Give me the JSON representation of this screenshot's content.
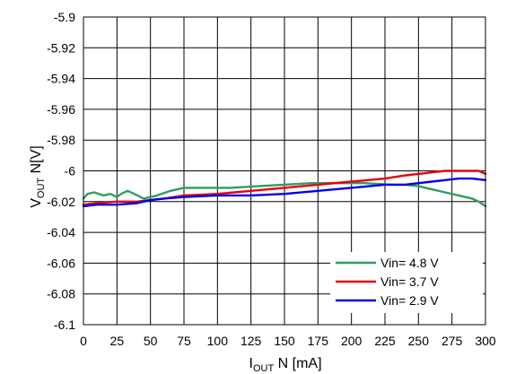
{
  "chart_data": {
    "type": "line",
    "title": "",
    "xlabel": {
      "main": "I",
      "sub": "OUT",
      "rest": " N [mA]"
    },
    "ylabel": {
      "main": "V",
      "sub": "OUT",
      "rest": " N[V]"
    },
    "xlim": [
      0,
      300
    ],
    "ylim": [
      -6.1,
      -5.9
    ],
    "xticks": [
      0,
      25,
      50,
      75,
      100,
      125,
      150,
      175,
      200,
      225,
      250,
      275,
      300
    ],
    "xtick_labels": [
      "0",
      "25",
      "50",
      "75",
      "100",
      "125",
      "150",
      "175",
      "200",
      "225",
      "250",
      "275",
      "300"
    ],
    "yticks": [
      -5.9,
      -5.92,
      -5.94,
      -5.96,
      -5.98,
      -6,
      -6.02,
      -6.04,
      -6.06,
      -6.08,
      -6.1
    ],
    "ytick_labels": [
      "-5.9",
      "-5.92",
      "-5.94",
      "-5.96",
      "-5.98",
      "-6",
      "-6.02",
      "-6.04",
      "-6.06",
      "-6.08",
      "-6.1"
    ],
    "grid": true,
    "legend_position": "bottom-right",
    "series": [
      {
        "name": "Vin= 4.8 V",
        "color": "#2e9e62",
        "x": [
          0,
          3,
          8,
          15,
          20,
          25,
          28,
          33,
          38,
          45,
          55,
          65,
          75,
          90,
          110,
          130,
          150,
          170,
          190,
          210,
          230,
          240,
          250,
          260,
          270,
          280,
          290,
          295,
          300
        ],
        "y": [
          -6.018,
          -6.015,
          -6.014,
          -6.016,
          -6.015,
          -6.017,
          -6.015,
          -6.013,
          -6.015,
          -6.018,
          -6.016,
          -6.013,
          -6.011,
          -6.011,
          -6.011,
          -6.01,
          -6.009,
          -6.008,
          -6.008,
          -6.008,
          -6.009,
          -6.009,
          -6.01,
          -6.012,
          -6.014,
          -6.016,
          -6.018,
          -6.02,
          -6.023
        ]
      },
      {
        "name": "Vin= 3.7 V",
        "color": "#e8000b",
        "x": [
          0,
          10,
          25,
          40,
          50,
          60,
          75,
          100,
          125,
          150,
          175,
          200,
          225,
          240,
          250,
          260,
          270,
          280,
          290,
          295,
          300
        ],
        "y": [
          -6.022,
          -6.021,
          -6.02,
          -6.02,
          -6.019,
          -6.018,
          -6.016,
          -6.015,
          -6.013,
          -6.011,
          -6.009,
          -6.007,
          -6.005,
          -6.003,
          -6.002,
          -6.001,
          -6.0,
          -6.0,
          -6.0,
          -6.0,
          -6.002
        ]
      },
      {
        "name": "Vin= 2.9 V",
        "color": "#0000ee",
        "x": [
          0,
          10,
          25,
          40,
          50,
          60,
          75,
          100,
          125,
          150,
          175,
          200,
          225,
          240,
          250,
          260,
          270,
          280,
          290,
          300
        ],
        "y": [
          -6.023,
          -6.022,
          -6.022,
          -6.021,
          -6.019,
          -6.018,
          -6.017,
          -6.016,
          -6.016,
          -6.015,
          -6.013,
          -6.011,
          -6.009,
          -6.009,
          -6.008,
          -6.007,
          -6.006,
          -6.005,
          -6.005,
          -6.006
        ]
      }
    ]
  }
}
